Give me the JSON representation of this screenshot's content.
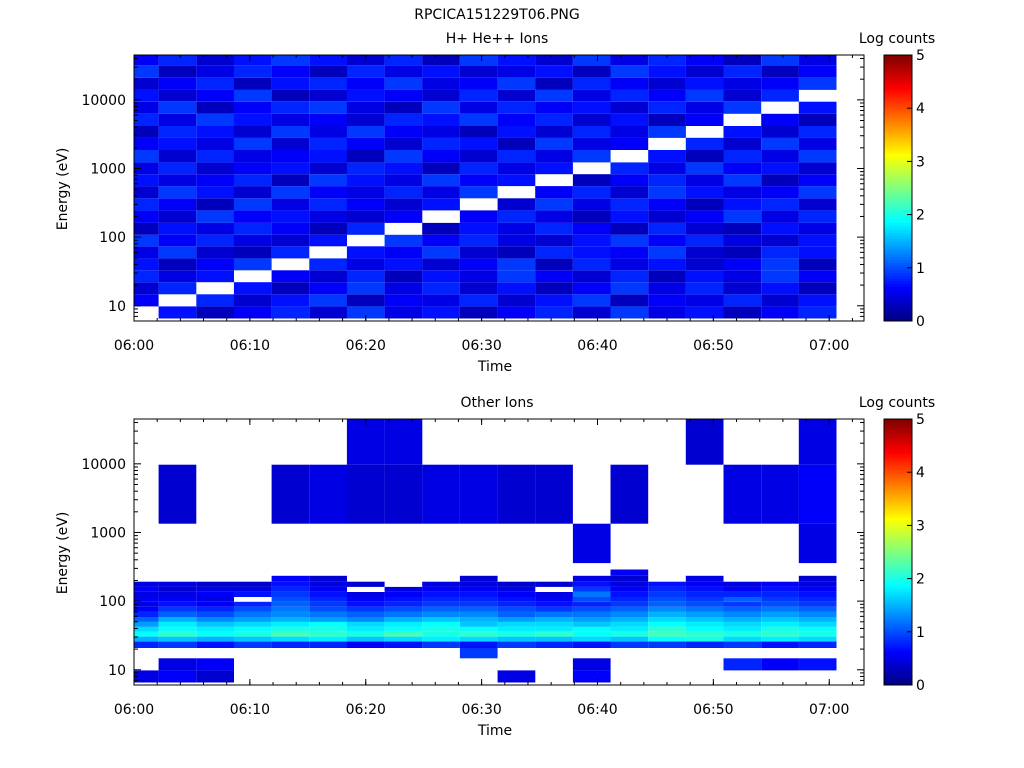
{
  "figure_title": "RPCICA151229T06.PNG",
  "colors": {
    "colormap": [
      "#00007f",
      "#0000ff",
      "#007fff",
      "#00ffff",
      "#7fff7f",
      "#ffff00",
      "#ff7f00",
      "#ff0000",
      "#7f0000"
    ]
  },
  "chart_data": [
    {
      "type": "heatmap",
      "title": "H+ He++ Ions",
      "xlabel": "Time",
      "ylabel": "Energy (eV)",
      "y_scale": "log",
      "ylim": [
        6,
        45000
      ],
      "xlim": [
        "06:00",
        "07:03"
      ],
      "x_ticks": [
        "06:00",
        "06:10",
        "06:20",
        "06:30",
        "06:40",
        "06:50",
        "07:00"
      ],
      "y_ticks": [
        "10",
        "100",
        "1000",
        "10000"
      ],
      "colorbar": {
        "label": "Log counts",
        "range": [
          0,
          5
        ],
        "ticks": [
          "0",
          "1",
          "2",
          "3",
          "4",
          "5"
        ]
      },
      "time_bins": [
        "06:00:30",
        "06:03:45",
        "06:07:00",
        "06:10:15",
        "06:13:30",
        "06:16:45",
        "06:20:00",
        "06:23:15",
        "06:26:30",
        "06:29:45",
        "06:33:00",
        "06:36:15",
        "06:39:30",
        "06:42:45",
        "06:46:00",
        "06:49:15",
        "06:52:30",
        "06:55:45",
        "06:59:00"
      ],
      "energy_bins": [
        8,
        12,
        18,
        27,
        40,
        60,
        90,
        130,
        200,
        300,
        450,
        680,
        1000,
        1500,
        2300,
        3400,
        5100,
        7700,
        11500,
        17000,
        26000,
        39000
      ],
      "cells": [
        [
          0.0,
          0.7,
          0.3,
          0.6,
          0.8,
          0.4,
          0.9,
          0.5,
          0.7,
          0.3,
          0.6,
          0.8,
          0.4,
          0.9,
          0.5,
          0.7,
          0.3,
          0.6,
          0.8
        ],
        [
          0.6,
          0.0,
          0.8,
          0.4,
          0.7,
          0.9,
          0.3,
          0.6,
          0.5,
          0.8,
          0.4,
          0.7,
          0.9,
          0.3,
          0.6,
          0.5,
          0.8,
          0.4,
          0.7
        ],
        [
          0.4,
          0.8,
          0.0,
          0.7,
          0.3,
          0.6,
          0.9,
          0.5,
          0.8,
          0.4,
          0.7,
          0.3,
          0.6,
          0.9,
          0.5,
          0.8,
          0.4,
          0.7,
          0.3
        ],
        [
          0.8,
          0.5,
          0.7,
          0.0,
          0.6,
          0.4,
          0.8,
          0.3,
          0.7,
          0.5,
          0.9,
          0.6,
          0.4,
          0.8,
          0.3,
          0.7,
          0.5,
          0.9,
          0.6
        ],
        [
          0.7,
          0.3,
          0.6,
          0.9,
          0.0,
          0.8,
          0.5,
          0.7,
          0.4,
          0.6,
          0.9,
          0.3,
          0.8,
          0.5,
          0.7,
          0.4,
          0.6,
          0.9,
          0.3
        ],
        [
          0.5,
          0.9,
          0.4,
          0.3,
          0.8,
          0.0,
          0.7,
          0.6,
          0.9,
          0.4,
          0.3,
          0.8,
          0.7,
          0.6,
          0.9,
          0.4,
          0.3,
          0.8,
          0.7
        ],
        [
          0.9,
          0.6,
          0.8,
          0.5,
          0.4,
          0.7,
          0.0,
          0.9,
          0.6,
          0.8,
          0.5,
          0.4,
          0.7,
          0.9,
          0.6,
          0.8,
          0.5,
          0.4,
          0.7
        ],
        [
          0.3,
          0.7,
          0.5,
          0.8,
          0.6,
          0.3,
          0.8,
          0.0,
          0.3,
          0.7,
          0.5,
          0.8,
          0.6,
          0.3,
          0.8,
          0.4,
          0.3,
          0.7,
          0.5
        ],
        [
          0.6,
          0.4,
          0.9,
          0.6,
          0.7,
          0.5,
          0.4,
          0.6,
          0.0,
          0.6,
          0.8,
          0.5,
          0.3,
          0.7,
          0.4,
          0.6,
          0.9,
          0.5,
          0.8
        ],
        [
          0.8,
          0.6,
          0.3,
          0.9,
          0.5,
          0.8,
          0.6,
          0.4,
          0.7,
          0.0,
          0.4,
          0.9,
          0.5,
          0.8,
          0.6,
          0.3,
          0.7,
          0.8,
          0.4
        ],
        [
          0.4,
          0.9,
          0.7,
          0.4,
          0.9,
          0.6,
          0.5,
          0.8,
          0.5,
          0.9,
          0.0,
          0.6,
          0.8,
          0.4,
          0.9,
          0.7,
          0.5,
          0.6,
          0.9
        ],
        [
          0.7,
          0.5,
          0.6,
          0.8,
          0.3,
          0.9,
          0.7,
          0.5,
          0.9,
          0.6,
          0.7,
          0.0,
          0.3,
          0.6,
          0.8,
          0.5,
          0.9,
          0.3,
          0.6
        ],
        [
          0.5,
          0.8,
          0.4,
          0.6,
          0.7,
          0.4,
          0.8,
          0.7,
          0.3,
          0.8,
          0.5,
          0.7,
          0.0,
          0.8,
          0.5,
          0.9,
          0.6,
          0.7,
          0.4
        ],
        [
          0.9,
          0.4,
          0.8,
          0.5,
          0.6,
          0.7,
          0.3,
          0.9,
          0.6,
          0.4,
          0.8,
          0.5,
          0.9,
          0.0,
          0.7,
          0.3,
          0.8,
          0.5,
          0.9
        ],
        [
          0.6,
          0.7,
          0.5,
          0.9,
          0.4,
          0.8,
          0.6,
          0.4,
          0.8,
          0.7,
          0.3,
          0.9,
          0.5,
          0.6,
          0.0,
          0.8,
          0.4,
          0.9,
          0.5
        ],
        [
          0.3,
          0.8,
          0.7,
          0.4,
          0.9,
          0.5,
          0.9,
          0.6,
          0.5,
          0.3,
          0.7,
          0.4,
          0.8,
          0.5,
          0.9,
          0.0,
          0.7,
          0.4,
          0.8
        ],
        [
          0.8,
          0.5,
          0.9,
          0.7,
          0.5,
          0.6,
          0.4,
          0.8,
          0.7,
          0.9,
          0.6,
          0.8,
          0.4,
          0.7,
          0.3,
          0.6,
          0.0,
          0.6,
          0.3
        ],
        [
          0.5,
          0.9,
          0.3,
          0.6,
          0.8,
          0.9,
          0.5,
          0.3,
          0.9,
          0.5,
          0.8,
          0.6,
          0.7,
          0.4,
          0.8,
          0.5,
          0.9,
          0.0,
          0.7
        ],
        [
          0.7,
          0.4,
          0.6,
          0.9,
          0.3,
          0.4,
          0.7,
          0.6,
          0.4,
          0.8,
          0.4,
          0.9,
          0.5,
          0.8,
          0.6,
          0.9,
          0.4,
          0.8,
          0.0
        ],
        [
          0.4,
          0.6,
          0.8,
          0.3,
          0.7,
          0.8,
          0.6,
          0.9,
          0.5,
          0.6,
          0.9,
          0.3,
          0.8,
          0.6,
          0.4,
          0.7,
          0.5,
          0.6,
          0.9
        ],
        [
          0.9,
          0.3,
          0.5,
          0.8,
          0.6,
          0.3,
          0.8,
          0.5,
          0.7,
          0.4,
          0.5,
          0.7,
          0.3,
          0.9,
          0.7,
          0.4,
          0.8,
          0.3,
          0.6
        ],
        [
          0.6,
          0.8,
          0.4,
          0.7,
          0.9,
          0.7,
          0.4,
          0.8,
          0.3,
          0.9,
          0.7,
          0.4,
          0.9,
          0.5,
          0.8,
          0.6,
          0.3,
          0.9,
          0.5
        ]
      ]
    },
    {
      "type": "heatmap",
      "title": "Other Ions",
      "xlabel": "Time",
      "ylabel": "Energy (eV)",
      "y_scale": "log",
      "ylim": [
        6,
        45000
      ],
      "xlim": [
        "06:00",
        "07:03"
      ],
      "x_ticks": [
        "06:00",
        "06:10",
        "06:20",
        "06:30",
        "06:40",
        "06:50",
        "07:00"
      ],
      "y_ticks": [
        "10",
        "100",
        "1000",
        "10000"
      ],
      "colorbar": {
        "label": "Log counts",
        "range": [
          0,
          5
        ],
        "ticks": [
          "0",
          "1",
          "2",
          "3",
          "4",
          "5"
        ]
      },
      "time_bins": [
        "06:00:30",
        "06:03:45",
        "06:07:00",
        "06:10:15",
        "06:13:30",
        "06:16:45",
        "06:20:00",
        "06:23:15",
        "06:26:30",
        "06:29:45",
        "06:33:00",
        "06:36:15",
        "06:39:30",
        "06:42:45",
        "06:46:00",
        "06:49:15",
        "06:52:30",
        "06:55:45",
        "06:59:00"
      ],
      "energy_bins": [
        8,
        12,
        18,
        24,
        28,
        33,
        39,
        46,
        54,
        64,
        76,
        90,
        106,
        125,
        148,
        175,
        210,
        260,
        320,
        400,
        4500,
        21000
      ],
      "cells": [
        [
          0.5,
          0.6,
          0.4,
          0.0,
          0.0,
          0.0,
          0.0,
          0.0,
          0.0,
          0.0,
          0.5,
          0.0,
          0.6,
          0.0,
          0.0,
          0.0,
          0.0,
          0.0,
          0.0
        ],
        [
          0.0,
          0.5,
          0.6,
          0.0,
          0.0,
          0.0,
          0.0,
          0.0,
          0.0,
          0.0,
          0.0,
          0.0,
          0.5,
          0.0,
          0.0,
          0.0,
          0.8,
          0.6,
          0.7
        ],
        [
          0.0,
          0.0,
          0.0,
          0.0,
          0.0,
          0.0,
          0.0,
          0.0,
          0.0,
          0.9,
          0.0,
          0.0,
          0.0,
          0.0,
          0.0,
          0.0,
          0.0,
          0.0,
          0.0
        ],
        [
          0.8,
          0.9,
          0.7,
          0.9,
          0.8,
          0.8,
          0.6,
          0.7,
          0.9,
          0.7,
          0.9,
          0.8,
          0.7,
          0.9,
          0.9,
          0.8,
          0.9,
          0.7,
          0.8
        ],
        [
          1.5,
          1.6,
          1.5,
          1.6,
          1.7,
          1.8,
          1.6,
          1.7,
          1.8,
          1.7,
          1.6,
          1.6,
          1.7,
          1.6,
          1.9,
          2.0,
          1.7,
          1.8,
          1.7
        ],
        [
          1.9,
          2.1,
          1.9,
          2.0,
          2.2,
          2.1,
          2.0,
          2.2,
          2.0,
          2.1,
          2.0,
          2.1,
          1.9,
          2.0,
          2.2,
          2.1,
          2.0,
          2.1,
          2.0
        ],
        [
          1.7,
          1.9,
          1.8,
          1.9,
          2.0,
          2.0,
          1.8,
          1.9,
          2.0,
          1.9,
          1.8,
          1.8,
          1.9,
          1.8,
          2.1,
          1.9,
          1.8,
          2.0,
          1.9
        ],
        [
          1.4,
          1.8,
          1.6,
          1.7,
          1.8,
          1.9,
          1.7,
          1.8,
          1.9,
          1.6,
          1.7,
          1.7,
          1.6,
          1.7,
          1.9,
          1.8,
          1.7,
          1.8,
          1.7
        ],
        [
          1.1,
          1.5,
          1.3,
          1.4,
          1.5,
          1.4,
          1.3,
          1.5,
          1.6,
          1.5,
          1.4,
          1.5,
          1.4,
          1.5,
          1.7,
          1.6,
          1.5,
          1.6,
          1.5
        ],
        [
          0.8,
          1.1,
          1.0,
          1.2,
          1.3,
          1.2,
          1.1,
          1.2,
          1.3,
          1.3,
          1.1,
          1.2,
          1.2,
          1.3,
          1.5,
          1.4,
          1.3,
          1.4,
          1.3
        ],
        [
          0.6,
          0.9,
          0.8,
          1.0,
          1.2,
          1.0,
          0.9,
          1.0,
          1.1,
          1.1,
          1.0,
          0.9,
          1.0,
          1.1,
          1.3,
          1.2,
          1.1,
          1.2,
          1.1
        ],
        [
          0.5,
          0.7,
          0.6,
          0.8,
          1.1,
          0.9,
          0.7,
          0.8,
          0.9,
          0.9,
          0.8,
          0.7,
          0.8,
          0.9,
          1.1,
          1.0,
          0.9,
          1.0,
          0.9
        ],
        [
          0.6,
          0.6,
          0.5,
          0.0,
          1.0,
          0.8,
          0.6,
          0.7,
          0.8,
          0.8,
          0.7,
          0.6,
          1.0,
          0.8,
          1.0,
          0.9,
          1.1,
          0.9,
          0.8
        ],
        [
          0.5,
          0.5,
          0.6,
          0.7,
          0.9,
          0.7,
          0.5,
          0.6,
          0.7,
          0.7,
          0.6,
          0.5,
          1.2,
          0.7,
          0.9,
          0.8,
          0.8,
          0.8,
          0.7
        ],
        [
          0.6,
          0.4,
          0.5,
          0.5,
          0.8,
          0.6,
          0.0,
          0.5,
          0.6,
          0.6,
          0.5,
          0.0,
          0.9,
          0.6,
          0.8,
          0.7,
          0.6,
          0.7,
          0.6
        ],
        [
          0.5,
          0.5,
          0.4,
          0.4,
          0.7,
          0.5,
          0.4,
          0.0,
          0.5,
          0.5,
          0.4,
          0.4,
          0.7,
          0.5,
          0.7,
          0.6,
          0.5,
          0.6,
          0.5
        ],
        [
          0.0,
          0.0,
          0.0,
          0.0,
          0.6,
          0.4,
          0.0,
          0.0,
          0.0,
          0.4,
          0.0,
          0.0,
          0.5,
          0.4,
          0.0,
          0.5,
          0.0,
          0.0,
          0.4
        ],
        [
          0.0,
          0.0,
          0.0,
          0.0,
          0.0,
          0.0,
          0.0,
          0.0,
          0.0,
          0.0,
          0.0,
          0.0,
          0.0,
          0.6,
          0.0,
          0.0,
          0.0,
          0.0,
          0.0
        ],
        [
          0.0,
          0.0,
          0.0,
          0.0,
          0.0,
          0.0,
          0.0,
          0.0,
          0.0,
          0.0,
          0.0,
          0.0,
          0.0,
          0.0,
          0.0,
          0.0,
          0.0,
          0.0,
          0.0
        ],
        [
          0.0,
          0.0,
          0.0,
          0.0,
          0.0,
          0.0,
          0.0,
          0.0,
          0.0,
          0.0,
          0.0,
          0.0,
          0.5,
          0.0,
          0.0,
          0.0,
          0.0,
          0.0,
          0.5
        ],
        [
          0.0,
          0.4,
          0.0,
          0.0,
          0.4,
          0.5,
          0.4,
          0.4,
          0.5,
          0.5,
          0.4,
          0.4,
          0.0,
          0.4,
          0.0,
          0.0,
          0.5,
          0.5,
          0.6
        ],
        [
          0.0,
          0.0,
          0.0,
          0.0,
          0.0,
          0.0,
          0.5,
          0.5,
          0.0,
          0.0,
          0.0,
          0.0,
          0.0,
          0.0,
          0.0,
          0.4,
          0.0,
          0.0,
          0.5
        ]
      ]
    }
  ]
}
